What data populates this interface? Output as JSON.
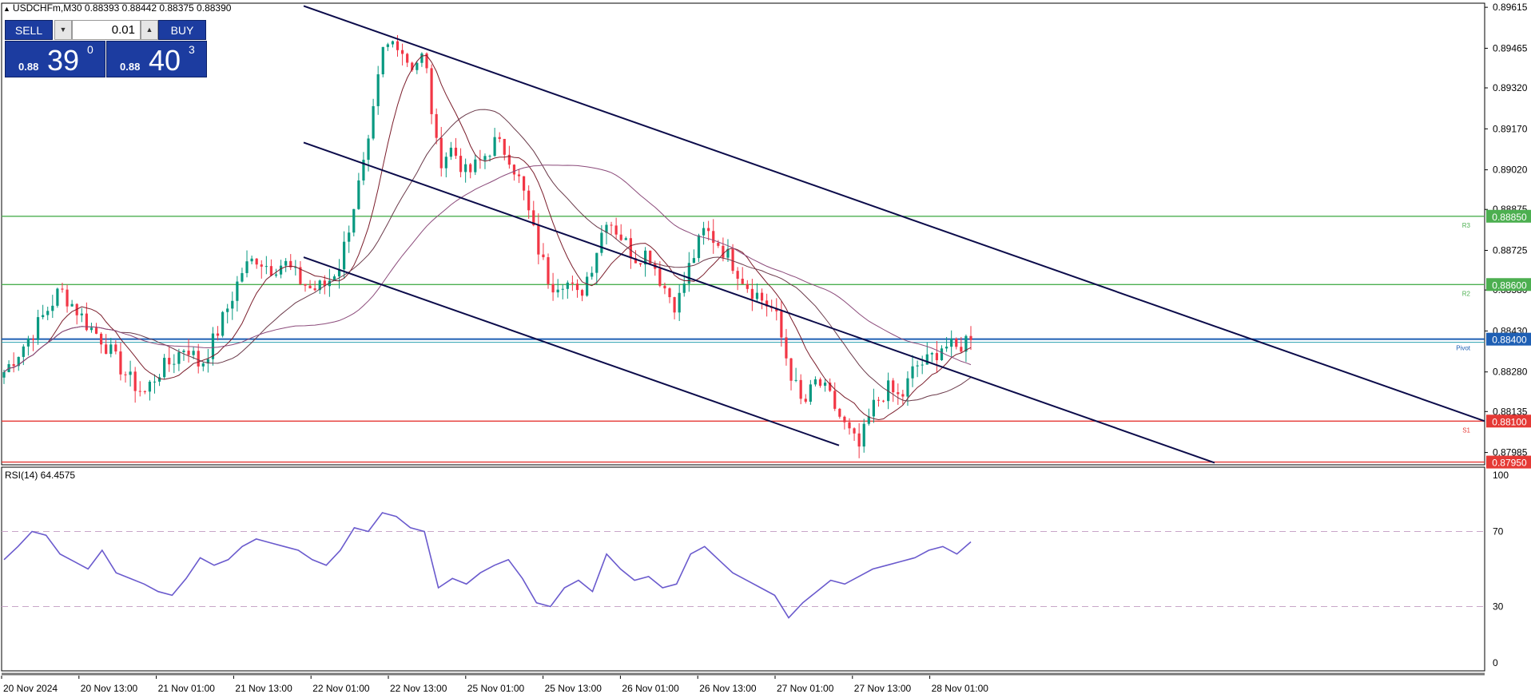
{
  "header": {
    "symbol_line": "USDCHFm,M30  0.88393 0.88442 0.88375 0.88390"
  },
  "trade_panel": {
    "sell_label": "SELL",
    "buy_label": "BUY",
    "lot_value": "0.01",
    "sell_small": "0.88",
    "sell_big": "39",
    "sell_sup": "0",
    "buy_small": "0.88",
    "buy_big": "40",
    "buy_sup": "3"
  },
  "colors": {
    "candle_up": "#089981",
    "candle_down": "#f23645",
    "ma_fast": "#7b1d2b",
    "ma_mid": "#6b3a4a",
    "ma_slow": "#8b4a7a",
    "channel": "#0b0b4a",
    "level_green": "#4caf50",
    "level_red": "#e53935",
    "level_blue": "#1e5fb4",
    "rsi": "#6a5acd"
  },
  "chart_data": [
    {
      "type": "candlestick",
      "symbol": "USDCHFm",
      "timeframe": "M30",
      "price_ticks": [
        "0.89615",
        "0.89465",
        "0.89320",
        "0.89170",
        "0.89020",
        "0.88875",
        "0.88725",
        "0.88580",
        "0.88430",
        "0.88280",
        "0.88135",
        "0.87985"
      ],
      "ylim": [
        0.8794,
        0.8963
      ],
      "time_ticks": [
        "20 Nov 2024",
        "20 Nov 13:00",
        "21 Nov 01:00",
        "21 Nov 13:00",
        "22 Nov 01:00",
        "22 Nov 13:00",
        "25 Nov 01:00",
        "25 Nov 13:00",
        "26 Nov 01:00",
        "26 Nov 13:00",
        "27 Nov 01:00",
        "27 Nov 13:00",
        "28 Nov 01:00"
      ],
      "close_path": [
        0.8828,
        0.8835,
        0.8842,
        0.885,
        0.8858,
        0.8852,
        0.8845,
        0.884,
        0.8832,
        0.8825,
        0.882,
        0.8828,
        0.8832,
        0.8838,
        0.883,
        0.884,
        0.8852,
        0.8865,
        0.887,
        0.8866,
        0.8868,
        0.8862,
        0.8858,
        0.886,
        0.8868,
        0.889,
        0.891,
        0.8945,
        0.895,
        0.894,
        0.8944,
        0.8905,
        0.891,
        0.89,
        0.8905,
        0.8912,
        0.8908,
        0.8895,
        0.8875,
        0.886,
        0.8862,
        0.8855,
        0.8868,
        0.8885,
        0.8878,
        0.887,
        0.8872,
        0.886,
        0.8852,
        0.8868,
        0.888,
        0.8875,
        0.8868,
        0.886,
        0.8855,
        0.885,
        0.883,
        0.8815,
        0.8825,
        0.8818,
        0.8808,
        0.88,
        0.8815,
        0.8822,
        0.8818,
        0.883,
        0.8832,
        0.8838,
        0.8836,
        0.8842
      ],
      "levels": [
        {
          "label": "R3",
          "price": 0.8885,
          "tag": "0.88850",
          "color": "green"
        },
        {
          "label": "R2",
          "price": 0.886,
          "tag": "0.88600",
          "color": "green"
        },
        {
          "label": "Pivot",
          "price": 0.884,
          "tag": "0.88400",
          "color": "blue"
        },
        {
          "label": "S1",
          "price": 0.881,
          "tag": "0.88100",
          "color": "red"
        },
        {
          "label": "",
          "price": 0.8795,
          "tag": "0.87950",
          "color": "red"
        }
      ],
      "moving_averages": 3,
      "trend_channel": "descending"
    },
    {
      "type": "line",
      "title": "RSI(14) 64.4575",
      "ylim": [
        0,
        100
      ],
      "y_ticks": [
        "100",
        "70",
        "30",
        "0"
      ],
      "guides": [
        70,
        30
      ],
      "values": [
        55,
        62,
        70,
        68,
        58,
        54,
        50,
        60,
        48,
        45,
        42,
        38,
        36,
        45,
        56,
        52,
        55,
        62,
        66,
        64,
        62,
        60,
        55,
        52,
        60,
        72,
        70,
        80,
        78,
        72,
        70,
        40,
        45,
        42,
        48,
        52,
        55,
        45,
        32,
        30,
        40,
        44,
        38,
        58,
        50,
        44,
        46,
        40,
        42,
        58,
        62,
        55,
        48,
        44,
        40,
        36,
        24,
        32,
        38,
        44,
        42,
        46,
        50,
        52,
        54,
        56,
        60,
        62,
        58,
        64.46
      ]
    }
  ]
}
